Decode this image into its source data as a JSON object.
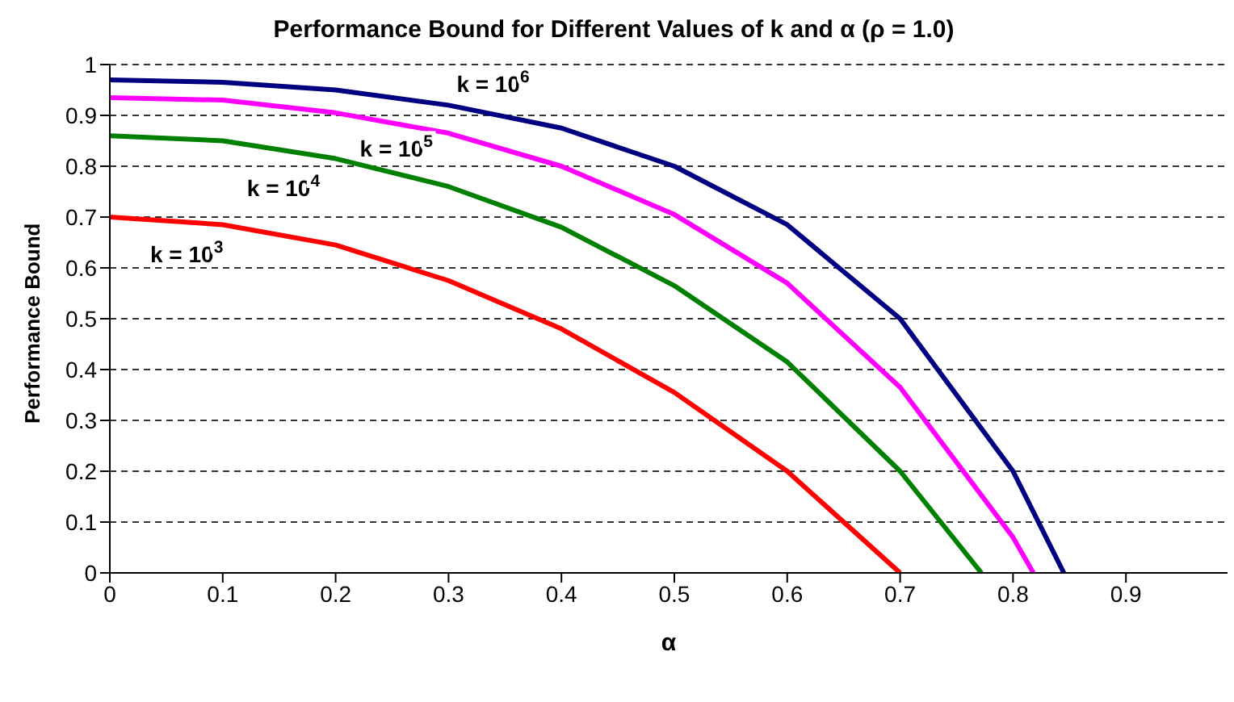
{
  "chart_data": {
    "type": "line",
    "title": "Performance Bound for Different Values of k and α  (ρ = 1.0)",
    "xlabel": "α",
    "ylabel": "Performance Bound",
    "xlim": [
      0,
      0.99
    ],
    "xticks": [
      0,
      0.1,
      0.2,
      0.3,
      0.4,
      0.5,
      0.6,
      0.7,
      0.8,
      0.9
    ],
    "ylim": [
      0,
      1
    ],
    "yticks": [
      0,
      0.1,
      0.2,
      0.3,
      0.4,
      0.5,
      0.6,
      0.7,
      0.8,
      0.9,
      1
    ],
    "grid": "y",
    "legend": false,
    "marker": "none",
    "line_style": "solid",
    "series": [
      {
        "name": "k = 10$^{3}$",
        "color": "#ff0000",
        "x": [
          0,
          0.1,
          0.2,
          0.3,
          0.4,
          0.5,
          0.6,
          0.7
        ],
        "values": [
          0.7,
          0.685,
          0.645,
          0.575,
          0.48,
          0.355,
          0.2,
          0
        ]
      },
      {
        "name": "k = 10$^{4}$",
        "color": "#008000",
        "x": [
          0,
          0.1,
          0.2,
          0.3,
          0.4,
          0.5,
          0.6,
          0.7,
          0.772
        ],
        "values": [
          0.86,
          0.85,
          0.815,
          0.76,
          0.68,
          0.565,
          0.415,
          0.2,
          0
        ]
      },
      {
        "name": "k = 10$^{5}$",
        "color": "#ff00ff",
        "x": [
          0,
          0.1,
          0.2,
          0.3,
          0.4,
          0.5,
          0.6,
          0.7,
          0.8,
          0.818
        ],
        "values": [
          0.935,
          0.93,
          0.905,
          0.865,
          0.8,
          0.705,
          0.57,
          0.365,
          0.07,
          0
        ]
      },
      {
        "name": "k = 10$^{6}$",
        "color": "#000080",
        "x": [
          0,
          0.1,
          0.2,
          0.3,
          0.4,
          0.5,
          0.6,
          0.7,
          0.8,
          0.845
        ],
        "values": [
          0.97,
          0.965,
          0.95,
          0.92,
          0.875,
          0.8,
          0.685,
          0.5,
          0.2,
          0
        ]
      }
    ]
  }
}
